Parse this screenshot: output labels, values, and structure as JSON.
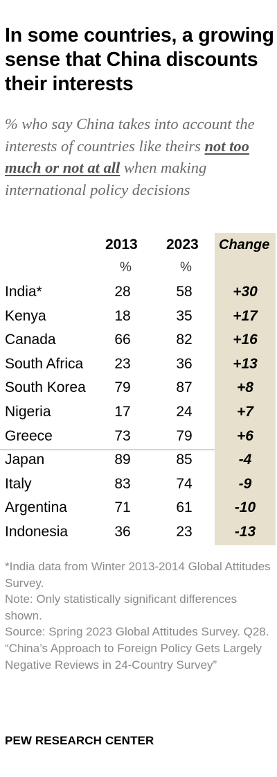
{
  "header": {
    "title": "In some countries, a growing sense that China discounts their interests",
    "subtitle_before": "% who say China takes into account the interests of countries like theirs ",
    "subtitle_emphasis": "not too much or not at all",
    "subtitle_after": " when making international policy decisions"
  },
  "table": {
    "col_2013": "2013",
    "col_2023": "2023",
    "col_change": "Change",
    "unit_2013": "%",
    "unit_2023": "%"
  },
  "chart_data": {
    "type": "table",
    "title": "In some countries, a growing sense that China discounts their interests",
    "columns": [
      "2013",
      "2023",
      "Change"
    ],
    "rows": [
      {
        "country": "India*",
        "v2013": "28",
        "v2023": "58",
        "change": "+30"
      },
      {
        "country": "Kenya",
        "v2013": "18",
        "v2023": "35",
        "change": "+17"
      },
      {
        "country": "Canada",
        "v2013": "66",
        "v2023": "82",
        "change": "+16"
      },
      {
        "country": "South Africa",
        "v2013": "23",
        "v2023": "36",
        "change": "+13"
      },
      {
        "country": "South Korea",
        "v2013": "79",
        "v2023": "87",
        "change": "+8"
      },
      {
        "country": "Nigeria",
        "v2013": "17",
        "v2023": "24",
        "change": "+7"
      },
      {
        "country": "Greece",
        "v2013": "73",
        "v2023": "79",
        "change": "+6"
      },
      {
        "country": "Japan",
        "v2013": "89",
        "v2023": "85",
        "change": "-4"
      },
      {
        "country": "Italy",
        "v2013": "83",
        "v2023": "74",
        "change": "-9"
      },
      {
        "country": "Argentina",
        "v2013": "71",
        "v2023": "61",
        "change": "-10"
      },
      {
        "country": "Indonesia",
        "v2013": "36",
        "v2023": "23",
        "change": "-13"
      }
    ]
  },
  "footer": {
    "note_india": "*India data from Winter 2013-2014 Global Attitudes Survey.",
    "note_significance": "Note: Only statistically significant differences shown.",
    "source": "Source: Spring 2023 Global Attitudes Survey. Q28.",
    "report_title": "“China’s Approach to Foreign Policy Gets Largely Negative Reviews in 24-Country Survey”",
    "brand": "PEW RESEARCH CENTER"
  },
  "colors": {
    "change_column_bg": "#e6e0cd",
    "subtitle_text": "#6c6c6c",
    "notes_text": "#8a8a8a"
  }
}
